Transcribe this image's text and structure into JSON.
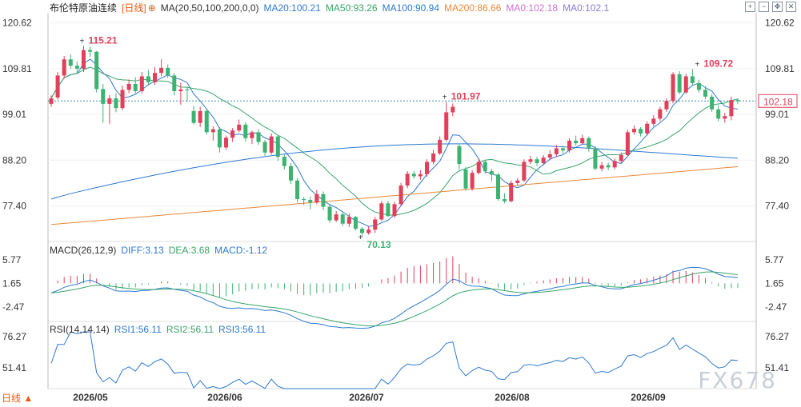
{
  "header": {
    "title": "布伦特原油连续",
    "period_tag": "[日线]",
    "ma_label": "MA(20,50,100,200,0,0)",
    "ma20": "MA20:100.21",
    "ma50": "MA50:93.26",
    "ma100": "MA100:90.94",
    "ma200": "MA200:86.66",
    "ma0a": "MA0:102.18",
    "ma0b": "MA0:102.1"
  },
  "macd_header": {
    "name": "MACD(26,12,9)",
    "diff": "DIFF:3.13",
    "dea": "DEA:3.68",
    "macd": "MACD:-1.12"
  },
  "rsi_header": {
    "name": "RSI(14,14,14)",
    "rsi1": "RSI1:56.11",
    "rsi2": "RSI2:56.11",
    "rsi3": "RSI3:56.11"
  },
  "period_button": "日线 ▲",
  "watermark": "FX678",
  "toolbar": {
    "icons": [
      "zoom-in-icon",
      "zoom-out-icon",
      "pan-icon",
      "close-icon"
    ]
  },
  "colors": {
    "up": "#e0405a",
    "down": "#3cb371",
    "ma20": "#2e7ad0",
    "ma50": "#38a56a",
    "ma100": "#2e7ad0",
    "ma200": "#e8893a",
    "last": "#e0405a",
    "axis": "#333333"
  },
  "chart_data": {
    "type": "candlestick",
    "title": "布伦特原油连续",
    "price_axis": {
      "ticks": [
        "120.62",
        "109.81",
        "99.01",
        "88.20",
        "77.40"
      ],
      "ylim": [
        69,
        123
      ]
    },
    "x_labels": [
      "2026/05",
      "2026/06",
      "2026/07",
      "2026/08",
      "2026/09"
    ],
    "annotations": {
      "high1": "115.21",
      "high2": "101.97",
      "low1": "70.13",
      "high3": "109.72",
      "last_price": "102.18"
    },
    "candles": [
      [
        101.5,
        102.8,
        103.5,
        100.8
      ],
      [
        103.0,
        108.2,
        109.0,
        102.5
      ],
      [
        108.2,
        112.0,
        112.8,
        107.5
      ],
      [
        112.0,
        110.5,
        113.2,
        109.8
      ],
      [
        110.5,
        109.8,
        111.5,
        108.6
      ],
      [
        109.8,
        114.2,
        115.21,
        109.0
      ],
      [
        114.2,
        113.8,
        115.0,
        112.6
      ],
      [
        113.8,
        105.0,
        114.0,
        104.2
      ],
      [
        105.0,
        101.5,
        106.2,
        97.0
      ],
      [
        101.5,
        102.8,
        103.6,
        96.8
      ],
      [
        102.8,
        100.5,
        104.0,
        99.5
      ],
      [
        100.5,
        104.8,
        105.8,
        100.0
      ],
      [
        104.8,
        106.2,
        107.2,
        104.0
      ],
      [
        106.2,
        104.5,
        107.8,
        104.0
      ],
      [
        104.5,
        108.0,
        109.0,
        104.0
      ],
      [
        108.0,
        106.6,
        109.5,
        105.8
      ],
      [
        106.6,
        108.8,
        110.2,
        106.0
      ],
      [
        108.8,
        110.0,
        112.0,
        108.0
      ],
      [
        110.0,
        108.2,
        110.8,
        107.6
      ],
      [
        108.2,
        104.5,
        108.8,
        103.5
      ],
      [
        104.5,
        104.9,
        106.5,
        101.3
      ],
      [
        104.9,
        104.7,
        105.4,
        102.0
      ],
      [
        99.8,
        97.0,
        101.0,
        96.6
      ],
      [
        97.0,
        99.8,
        100.8,
        96.0
      ],
      [
        99.8,
        94.8,
        100.2,
        94.2
      ],
      [
        94.8,
        95.5,
        96.2,
        92.8
      ],
      [
        95.5,
        91.2,
        96.0,
        90.0
      ],
      [
        91.2,
        93.5,
        94.0,
        90.6
      ],
      [
        93.5,
        95.2,
        95.8,
        92.5
      ],
      [
        95.2,
        96.6,
        97.8,
        94.8
      ],
      [
        96.6,
        93.4,
        97.2,
        92.6
      ],
      [
        93.4,
        94.8,
        95.2,
        92.0
      ],
      [
        94.8,
        92.5,
        95.5,
        91.8
      ],
      [
        92.5,
        90.0,
        93.0,
        89.2
      ],
      [
        90.0,
        93.8,
        94.5,
        89.5
      ],
      [
        93.8,
        89.0,
        94.0,
        88.0
      ],
      [
        89.0,
        86.8,
        89.5,
        86.0
      ],
      [
        86.8,
        83.4,
        87.5,
        82.6
      ],
      [
        83.4,
        79.0,
        84.0,
        78.2
      ],
      [
        79.0,
        78.8,
        79.5,
        77.6
      ],
      [
        78.8,
        78.2,
        79.6,
        76.6
      ],
      [
        78.2,
        80.2,
        81.2,
        77.8
      ],
      [
        80.2,
        77.2,
        80.8,
        76.4
      ],
      [
        77.2,
        74.0,
        77.8,
        73.4
      ],
      [
        74.0,
        75.4,
        76.2,
        73.6
      ],
      [
        75.4,
        73.2,
        75.8,
        72.6
      ],
      [
        73.2,
        74.8,
        75.6,
        72.4
      ],
      [
        74.8,
        72.0,
        75.0,
        71.6
      ],
      [
        72.0,
        71.0,
        72.4,
        70.13
      ],
      [
        71.0,
        71.8,
        72.6,
        70.6
      ],
      [
        71.8,
        74.2,
        74.8,
        71.0
      ],
      [
        74.2,
        78.0,
        78.6,
        73.8
      ],
      [
        78.0,
        75.0,
        78.6,
        74.8
      ],
      [
        75.0,
        77.8,
        78.4,
        74.6
      ],
      [
        77.8,
        82.2,
        82.8,
        77.4
      ],
      [
        82.2,
        85.0,
        85.6,
        81.6
      ],
      [
        85.0,
        84.4,
        85.6,
        83.8
      ],
      [
        84.4,
        84.9,
        85.8,
        83.6
      ],
      [
        84.9,
        87.8,
        88.4,
        84.3
      ],
      [
        87.8,
        89.8,
        90.6,
        87.2
      ],
      [
        89.8,
        93.0,
        93.8,
        89.4
      ],
      [
        93.0,
        99.5,
        101.97,
        92.6
      ],
      [
        99.5,
        100.8,
        101.6,
        98.6
      ],
      [
        91.5,
        87.3,
        92.0,
        86.0
      ],
      [
        86.0,
        81.5,
        86.6,
        81.0
      ],
      [
        81.5,
        85.2,
        85.8,
        81.0
      ],
      [
        85.2,
        87.8,
        88.6,
        84.8
      ],
      [
        87.8,
        85.6,
        88.2,
        85.0
      ],
      [
        85.6,
        84.8,
        86.2,
        83.2
      ],
      [
        84.8,
        79.0,
        85.2,
        78.6
      ],
      [
        79.0,
        78.5,
        80.4,
        78.0
      ],
      [
        78.5,
        82.8,
        83.4,
        78.2
      ],
      [
        82.8,
        83.4,
        84.0,
        82.2
      ],
      [
        83.4,
        87.8,
        88.4,
        83.0
      ],
      [
        87.8,
        88.4,
        89.2,
        87.2
      ],
      [
        88.4,
        87.5,
        89.0,
        86.8
      ],
      [
        87.5,
        88.8,
        89.4,
        87.0
      ],
      [
        88.8,
        89.6,
        90.6,
        88.2
      ],
      [
        89.6,
        91.0,
        91.8,
        89.0
      ],
      [
        91.0,
        90.5,
        91.6,
        89.8
      ],
      [
        90.5,
        92.8,
        93.4,
        90.0
      ],
      [
        92.8,
        92.2,
        94.0,
        91.6
      ],
      [
        92.2,
        93.4,
        94.2,
        91.8
      ],
      [
        93.4,
        91.0,
        93.8,
        90.2
      ],
      [
        91.0,
        86.2,
        91.5,
        85.8
      ],
      [
        86.2,
        87.0,
        87.8,
        85.6
      ],
      [
        87.0,
        86.5,
        87.6,
        85.8
      ],
      [
        86.5,
        88.0,
        88.6,
        86.0
      ],
      [
        88.0,
        89.4,
        90.0,
        87.4
      ],
      [
        89.4,
        94.8,
        95.4,
        89.0
      ],
      [
        94.8,
        95.6,
        96.4,
        94.2
      ],
      [
        95.6,
        94.5,
        96.0,
        93.8
      ],
      [
        94.5,
        96.8,
        97.4,
        94.0
      ],
      [
        96.8,
        98.0,
        98.8,
        96.2
      ],
      [
        98.0,
        100.2,
        100.8,
        97.4
      ],
      [
        100.2,
        102.2,
        102.8,
        99.6
      ],
      [
        102.2,
        108.5,
        109.0,
        101.6
      ],
      [
        108.5,
        104.2,
        109.2,
        103.8
      ],
      [
        104.2,
        108.0,
        108.6,
        103.8
      ],
      [
        108.0,
        106.4,
        109.72,
        105.8
      ],
      [
        106.4,
        104.8,
        107.2,
        104.2
      ],
      [
        104.8,
        103.2,
        105.6,
        102.6
      ],
      [
        103.2,
        100.2,
        103.8,
        99.6
      ],
      [
        100.2,
        98.0,
        101.2,
        97.4
      ],
      [
        98.0,
        98.6,
        99.4,
        97.0
      ],
      [
        98.6,
        102.4,
        103.2,
        97.6
      ],
      [
        102.4,
        102.18,
        102.8,
        101.4
      ]
    ]
  }
}
